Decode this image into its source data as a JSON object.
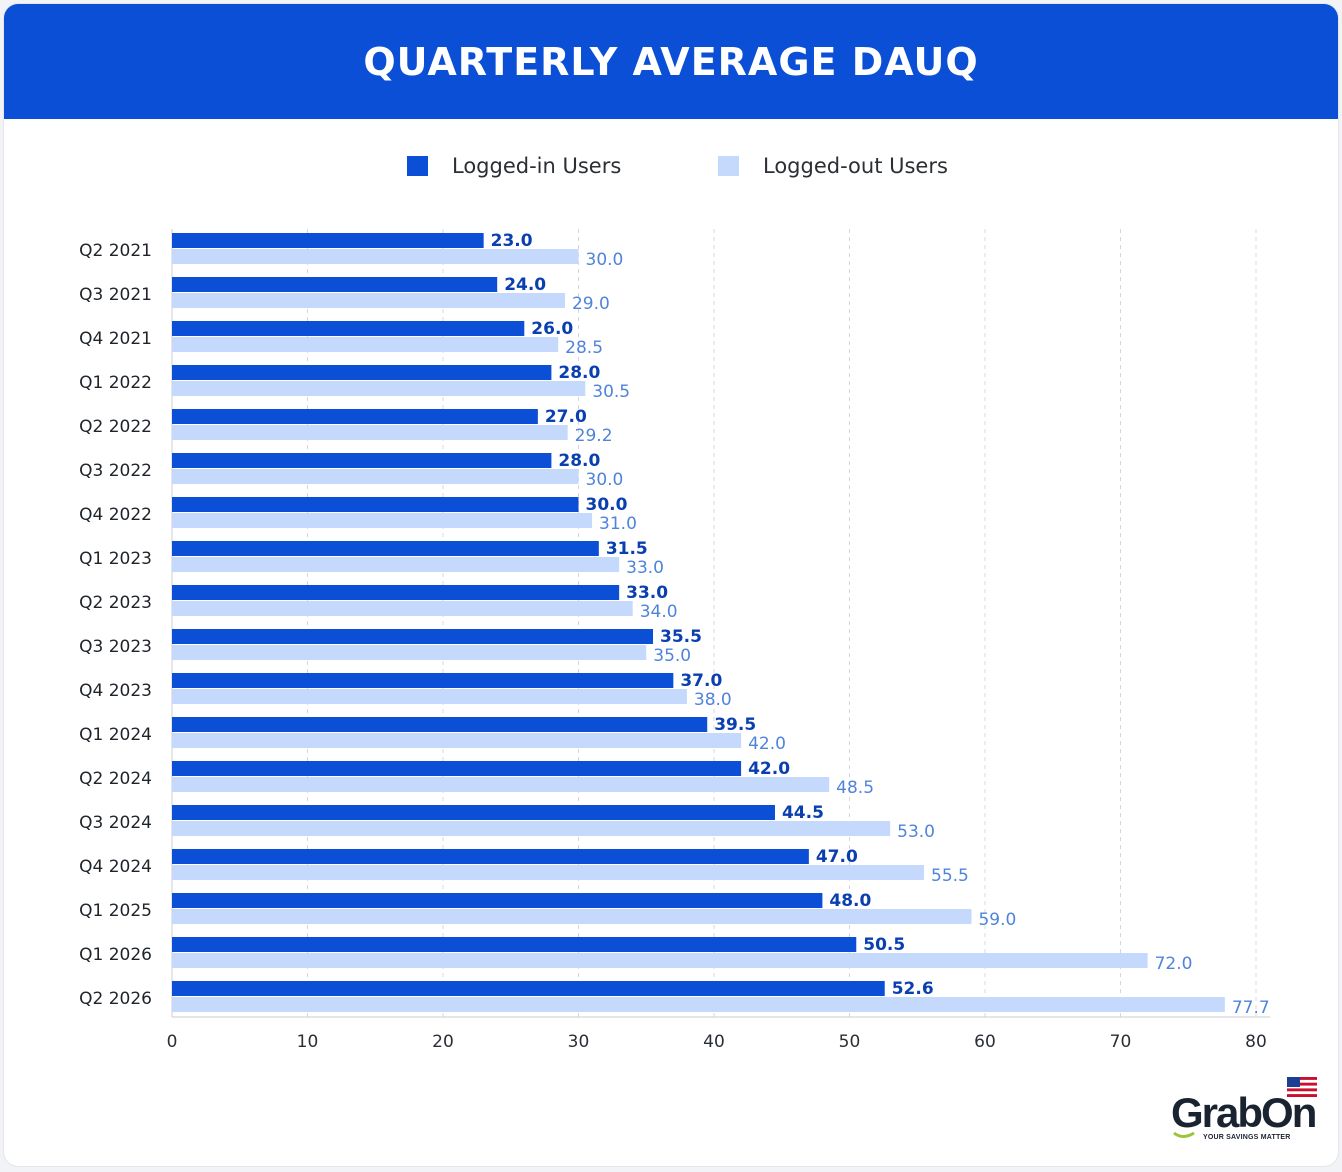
{
  "chart_data": {
    "type": "bar",
    "orientation": "horizontal",
    "title": "QUARTERLY AVERAGE DAUQ",
    "categories": [
      "Q2 2021",
      "Q3 2021",
      "Q4 2021",
      "Q1 2022",
      "Q2 2022",
      "Q3 2022",
      "Q4 2022",
      "Q1 2023",
      "Q2 2023",
      "Q3 2023",
      "Q4 2023",
      "Q1 2024",
      "Q2 2024",
      "Q3 2024",
      "Q4 2024",
      "Q1 2025",
      "Q1 2026",
      "Q2 2026"
    ],
    "series": [
      {
        "name": "Logged-in Users",
        "color": "#0a4fd6",
        "label_color": "#0a3fb0",
        "values": [
          23.0,
          24.0,
          26.0,
          28.0,
          27.0,
          28.0,
          30.0,
          31.5,
          33.0,
          35.5,
          37.0,
          39.5,
          42.0,
          44.5,
          47.0,
          48.0,
          50.5,
          52.6
        ],
        "labels": [
          "23.0",
          "24.0",
          "26.0",
          "28.0",
          "27.0",
          "28.0",
          "30.0",
          "31.5",
          "33.0",
          "35.5",
          "37.0",
          "39.5",
          "42.0",
          "44.5",
          "47.0",
          "48.0",
          "50.5",
          "52.6"
        ]
      },
      {
        "name": "Logged-out Users",
        "color": "#c4d9fb",
        "label_color": "#4f84da",
        "values": [
          30.0,
          29.0,
          28.5,
          30.5,
          29.2,
          30.0,
          31.0,
          33.0,
          34.0,
          35.0,
          38.0,
          42.0,
          48.5,
          53.0,
          55.5,
          59.0,
          72.0,
          77.7
        ],
        "labels": [
          "30.0",
          "29.0",
          "28.5",
          "30.5",
          "29.2",
          "30.0",
          "31.0",
          "33.0",
          "34.0",
          "35.0",
          "38.0",
          "42.0",
          "48.5",
          "53.0",
          "55.5",
          "59.0",
          "72.0",
          "77.7"
        ]
      }
    ],
    "xlim": [
      0,
      80
    ],
    "xticks": [
      "0",
      "10",
      "20",
      "30",
      "40",
      "50",
      "60",
      "70",
      "80"
    ],
    "grid": true,
    "legend_position": "top-center"
  },
  "brand": {
    "name": "GrabOn",
    "tagline": "YOUR SAVINGS MATTER",
    "flag_icon": "us-flag-icon"
  }
}
